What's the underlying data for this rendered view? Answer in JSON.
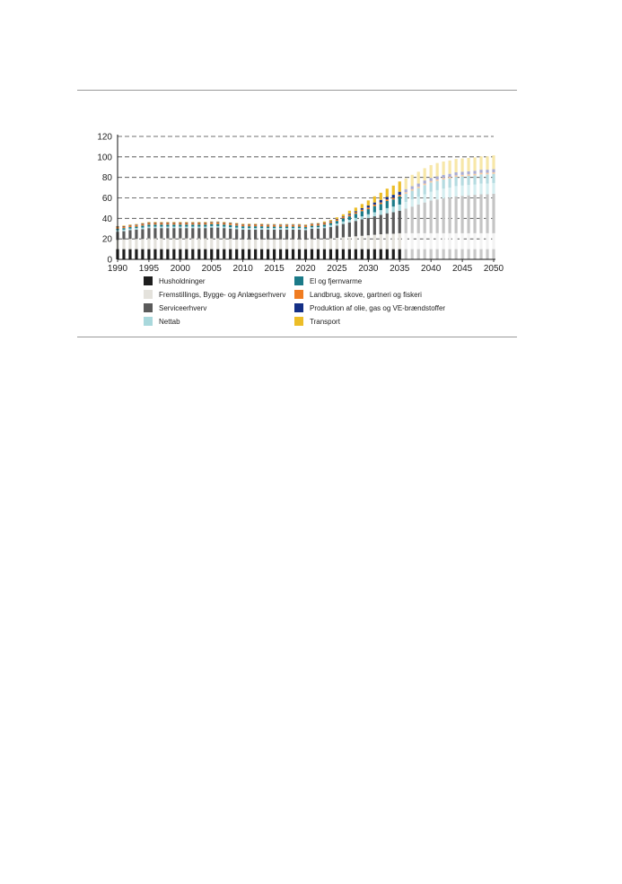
{
  "chart_data": {
    "type": "bar",
    "stacked": true,
    "projection_from": 2036,
    "x": [
      1990,
      1991,
      1992,
      1993,
      1994,
      1995,
      1996,
      1997,
      1998,
      1999,
      2000,
      2001,
      2002,
      2003,
      2004,
      2005,
      2006,
      2007,
      2008,
      2009,
      2010,
      2011,
      2012,
      2013,
      2014,
      2015,
      2016,
      2017,
      2018,
      2019,
      2020,
      2021,
      2022,
      2023,
      2024,
      2025,
      2026,
      2027,
      2028,
      2029,
      2030,
      2031,
      2032,
      2033,
      2034,
      2035,
      2036,
      2037,
      2038,
      2039,
      2040,
      2041,
      2042,
      2043,
      2044,
      2045,
      2046,
      2047,
      2048,
      2049,
      2050
    ],
    "x_ticks": [
      1990,
      1995,
      2000,
      2005,
      2010,
      2015,
      2020,
      2025,
      2030,
      2035,
      2040,
      2045,
      2050
    ],
    "y_ticks": [
      0,
      20,
      40,
      60,
      80,
      100,
      120
    ],
    "ylim": [
      0,
      120
    ],
    "grid": "dashed horizontal",
    "series": [
      {
        "name": "Husholdninger",
        "color": "#1e1e1e",
        "light": "#c8c8c8",
        "values": [
          10,
          10,
          10,
          10,
          10,
          10,
          10,
          10,
          10,
          10,
          10,
          10,
          10,
          10,
          10,
          10,
          10,
          10,
          10,
          10,
          10,
          10,
          10,
          10,
          10,
          10,
          10,
          10,
          10,
          10,
          10,
          10,
          10,
          10,
          10,
          10,
          10,
          10,
          10,
          10,
          10,
          10,
          10,
          10,
          10,
          10,
          10,
          10,
          10,
          10,
          10,
          10,
          10,
          10,
          10,
          10,
          10,
          10,
          10,
          10,
          10
        ]
      },
      {
        "name": "Fremstillings, Bygge- og Anlægserhverv",
        "color": "#e4e2dc",
        "light": "#f3f3f3",
        "values": [
          9,
          9.5,
          10,
          10,
          10,
          10.5,
          10.5,
          10.5,
          10.5,
          10.5,
          10.5,
          10.5,
          10.5,
          10.5,
          10.5,
          10.5,
          10.5,
          10.5,
          10,
          9.5,
          9.5,
          9.5,
          9.5,
          9.5,
          9.5,
          9.5,
          9.5,
          9.5,
          9.5,
          9.5,
          9.2,
          9.8,
          10,
          10,
          10.5,
          11,
          11.5,
          12,
          12.5,
          13,
          13.5,
          14,
          14.5,
          15,
          15,
          15.5,
          15.5,
          15.5,
          15.5,
          15.5,
          15.5,
          15.5,
          15.5,
          15.5,
          15.5,
          15.5,
          15.5,
          15.5,
          15.5,
          15.5,
          15.5
        ]
      },
      {
        "name": "Serviceerhverv",
        "color": "#5a5a5a",
        "light": "#c4c4c4",
        "values": [
          8,
          8,
          8.5,
          9,
          9.5,
          10,
          10,
          10,
          10,
          10,
          10,
          10,
          10,
          10,
          10,
          10.5,
          10.5,
          10,
          10,
          10,
          9.5,
          9.5,
          9.5,
          9.5,
          9.5,
          9.5,
          9.5,
          9.5,
          9.5,
          9.5,
          9.3,
          10,
          10,
          10.5,
          11,
          12,
          13,
          14,
          15,
          16,
          17,
          18,
          19,
          20,
          21,
          22,
          24,
          26,
          28,
          30,
          32,
          33,
          34,
          35,
          36,
          36.5,
          37,
          37.5,
          38,
          38,
          38.5
        ]
      },
      {
        "name": "Nettab",
        "color": "#a9d8dc",
        "light": "#d5eef0",
        "values": [
          1.5,
          1.5,
          1.5,
          1.5,
          1.5,
          1.5,
          1.5,
          1.5,
          1.5,
          1.5,
          1.5,
          1.5,
          1.5,
          1.5,
          1.5,
          1.5,
          1.5,
          1.5,
          1.5,
          1.5,
          1.5,
          1.5,
          1.5,
          1.5,
          1.5,
          1.5,
          1.5,
          1.5,
          1.5,
          1.5,
          1.5,
          1.5,
          1.5,
          1.5,
          2,
          2,
          2.5,
          2.5,
          3,
          3,
          3.5,
          4,
          4.5,
          5,
          5.5,
          6,
          6.5,
          7,
          7.5,
          8,
          8.5,
          9,
          9.5,
          9.5,
          10,
          10,
          10,
          10,
          10.5,
          10.5,
          10.5
        ]
      },
      {
        "name": "El og fjernvarme",
        "color": "#1b7a88",
        "light": "#b5dbe0",
        "values": [
          1.5,
          1.5,
          1.5,
          1.5,
          2,
          2,
          2,
          2,
          2,
          2,
          2,
          2,
          2,
          2,
          2,
          2,
          2,
          2,
          2,
          2,
          1.8,
          1.8,
          1.8,
          1.8,
          1.5,
          1.5,
          1.5,
          1.5,
          1.5,
          1.5,
          1.5,
          1.5,
          1.5,
          2,
          2,
          2.5,
          3,
          3.5,
          4,
          5,
          5,
          6,
          6,
          7,
          7,
          8,
          8,
          8.5,
          8.5,
          9,
          9,
          9,
          9,
          9,
          9,
          9,
          9,
          9,
          9,
          9,
          9
        ]
      },
      {
        "name": "Landbrug, skove, gartneri og fiskeri",
        "color": "#f07c21",
        "light": "#f6c9a0",
        "values": [
          1.5,
          1.5,
          1.5,
          1.5,
          1.5,
          1.5,
          1.5,
          1.5,
          1.5,
          1.5,
          1.5,
          1.5,
          1.5,
          1.5,
          1.5,
          1.5,
          1.5,
          1.5,
          1.5,
          1.5,
          1.5,
          1.5,
          1.5,
          1.5,
          1.5,
          1.5,
          1.5,
          1.5,
          1.5,
          1.5,
          1.5,
          1.5,
          1.5,
          1.5,
          1.5,
          1.5,
          1.5,
          1.5,
          1.5,
          1.5,
          1.5,
          1.5,
          1.5,
          1.5,
          1.5,
          1.5,
          1.5,
          1.5,
          1.5,
          1.5,
          1.5,
          1.5,
          1.5,
          1.5,
          1.5,
          1.5,
          1.5,
          1.5,
          1.5,
          1.5,
          1.5
        ]
      },
      {
        "name": "Produktion af olie, gas og VE-brændstoffer",
        "color": "#142f86",
        "light": "#a9acd2",
        "values": [
          0.5,
          0.5,
          0.5,
          0.5,
          0.5,
          0.5,
          0.5,
          0.5,
          0.5,
          0.5,
          0.5,
          0.5,
          0.5,
          0.5,
          0.5,
          0.5,
          0.5,
          0.5,
          0.5,
          0.5,
          0.5,
          0.5,
          0.5,
          0.5,
          0.5,
          0.5,
          0.5,
          0.5,
          0.5,
          0.5,
          0.5,
          0.5,
          0.5,
          0.5,
          0.5,
          0.5,
          0.5,
          1,
          1,
          1.5,
          2,
          2,
          2.5,
          2.5,
          3,
          3,
          3,
          3,
          3,
          3,
          3,
          3,
          3,
          3,
          3,
          3,
          3,
          3,
          3,
          3,
          3
        ]
      },
      {
        "name": "Transport",
        "color": "#ecbd27",
        "light": "#f7e7a8",
        "values": [
          0.5,
          0.5,
          0.5,
          0.5,
          0.5,
          0.5,
          0.5,
          0.5,
          0.5,
          0.5,
          0.5,
          0.5,
          0.5,
          0.5,
          0.5,
          0.5,
          0.5,
          0.5,
          0.5,
          0.5,
          0.5,
          0.5,
          0.5,
          0.5,
          0.5,
          0.5,
          0.5,
          0.5,
          0.5,
          0.5,
          0.5,
          0.5,
          0.5,
          1,
          1,
          1.5,
          2,
          3,
          3.5,
          4,
          5,
          6,
          7,
          8,
          9,
          10,
          10.5,
          11,
          11.5,
          12,
          12.5,
          13,
          13,
          13,
          13,
          13,
          13,
          13,
          13,
          13,
          13.5
        ]
      }
    ]
  }
}
